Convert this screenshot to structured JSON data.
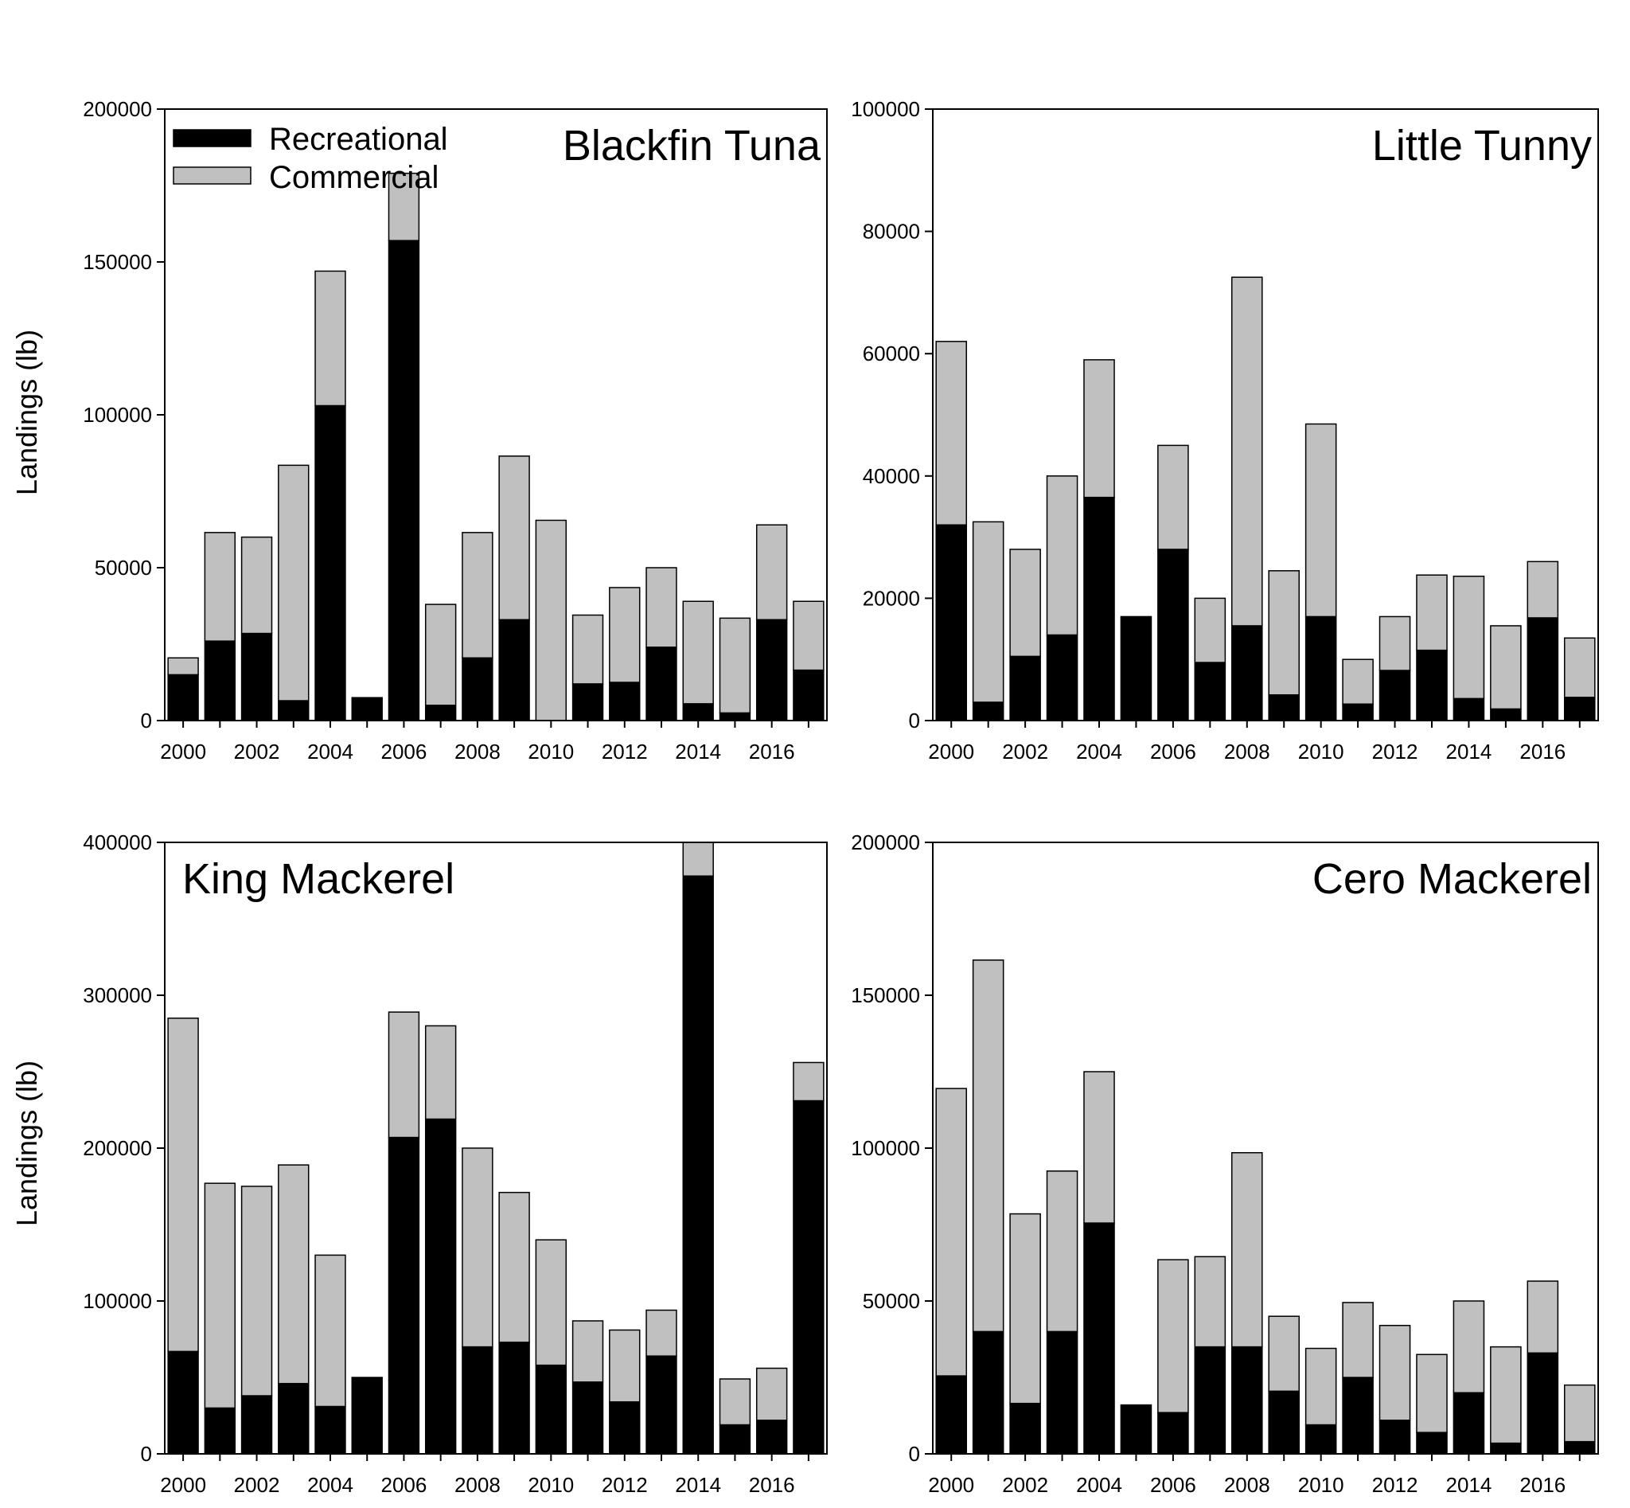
{
  "figure": {
    "ylabel": "Landings (lb)",
    "legend": [
      {
        "name": "Recreational",
        "color": "#000000"
      },
      {
        "name": "Commercial",
        "color": "#c0c0c0"
      }
    ]
  },
  "chart_data": [
    {
      "type": "bar",
      "stacked": true,
      "title": "Blackfin Tuna",
      "title_align": "right",
      "xlabel": "",
      "ylabel": "Landings (lb)",
      "ylim": [
        0,
        200000
      ],
      "yticks": [
        0,
        50000,
        100000,
        150000,
        200000
      ],
      "legend_position": "top-left",
      "x": [
        2000,
        2001,
        2002,
        2003,
        2004,
        2005,
        2006,
        2007,
        2008,
        2009,
        2010,
        2011,
        2012,
        2013,
        2014,
        2015,
        2016,
        2017
      ],
      "xticks": [
        2000,
        2002,
        2004,
        2006,
        2008,
        2010,
        2012,
        2014,
        2016
      ],
      "series": [
        {
          "name": "Recreational",
          "values": [
            15000,
            26000,
            28500,
            6500,
            103000,
            7500,
            157000,
            5000,
            20500,
            33000,
            0,
            12000,
            12500,
            24000,
            5500,
            2500,
            33000,
            16500
          ]
        },
        {
          "name": "Commercial",
          "values": [
            5500,
            35500,
            31500,
            77000,
            44000,
            0,
            22000,
            33000,
            41000,
            53500,
            65500,
            22500,
            31000,
            26000,
            33500,
            31000,
            31000,
            22500
          ]
        }
      ]
    },
    {
      "type": "bar",
      "stacked": true,
      "title": "Little Tunny",
      "title_align": "right",
      "xlabel": "",
      "ylabel": "",
      "ylim": [
        0,
        100000
      ],
      "yticks": [
        0,
        20000,
        40000,
        60000,
        80000,
        100000
      ],
      "x": [
        2000,
        2001,
        2002,
        2003,
        2004,
        2005,
        2006,
        2007,
        2008,
        2009,
        2010,
        2011,
        2012,
        2013,
        2014,
        2015,
        2016,
        2017
      ],
      "xticks": [
        2000,
        2002,
        2004,
        2006,
        2008,
        2010,
        2012,
        2014,
        2016
      ],
      "series": [
        {
          "name": "Recreational",
          "values": [
            32000,
            3000,
            10500,
            14000,
            36500,
            17000,
            28000,
            9500,
            15500,
            4200,
            17000,
            2700,
            8200,
            11500,
            3600,
            1900,
            16800,
            3800
          ]
        },
        {
          "name": "Commercial",
          "values": [
            30000,
            29500,
            17500,
            26000,
            22500,
            0,
            17000,
            10500,
            57000,
            20300,
            31500,
            7300,
            8800,
            12300,
            20000,
            13600,
            9200,
            9700
          ]
        }
      ]
    },
    {
      "type": "bar",
      "stacked": true,
      "title": "King Mackerel",
      "title_align": "left",
      "xlabel": "",
      "ylabel": "Landings (lb)",
      "ylim": [
        0,
        400000
      ],
      "yticks": [
        0,
        100000,
        200000,
        300000,
        400000
      ],
      "x": [
        2000,
        2001,
        2002,
        2003,
        2004,
        2005,
        2006,
        2007,
        2008,
        2009,
        2010,
        2011,
        2012,
        2013,
        2014,
        2015,
        2016,
        2017
      ],
      "xticks": [
        2000,
        2002,
        2004,
        2006,
        2008,
        2010,
        2012,
        2014,
        2016
      ],
      "series": [
        {
          "name": "Recreational",
          "values": [
            67000,
            30000,
            38000,
            46000,
            31000,
            50000,
            207000,
            219000,
            70000,
            73000,
            58000,
            47000,
            34000,
            64000,
            378000,
            19000,
            22000,
            231000
          ]
        },
        {
          "name": "Commercial",
          "values": [
            218000,
            147000,
            137000,
            143000,
            99000,
            0,
            82000,
            61000,
            130000,
            98000,
            82000,
            40000,
            47000,
            30000,
            22000,
            30000,
            34000,
            25000
          ]
        }
      ]
    },
    {
      "type": "bar",
      "stacked": true,
      "title": "Cero Mackerel",
      "title_align": "right",
      "xlabel": "",
      "ylabel": "",
      "ylim": [
        0,
        200000
      ],
      "yticks": [
        0,
        50000,
        100000,
        150000,
        200000
      ],
      "x": [
        2000,
        2001,
        2002,
        2003,
        2004,
        2005,
        2006,
        2007,
        2008,
        2009,
        2010,
        2011,
        2012,
        2013,
        2014,
        2015,
        2016,
        2017
      ],
      "xticks": [
        2000,
        2002,
        2004,
        2006,
        2008,
        2010,
        2012,
        2014,
        2016
      ],
      "series": [
        {
          "name": "Recreational",
          "values": [
            25500,
            40000,
            16500,
            40000,
            75500,
            16000,
            13500,
            35000,
            35000,
            20500,
            9500,
            25000,
            11000,
            7000,
            20000,
            3500,
            33000,
            4000
          ]
        },
        {
          "name": "Commercial",
          "values": [
            94000,
            121500,
            62000,
            52500,
            49500,
            0,
            50000,
            29500,
            63500,
            24500,
            25000,
            24500,
            31000,
            25500,
            30000,
            31500,
            23500,
            18500
          ]
        }
      ]
    }
  ]
}
